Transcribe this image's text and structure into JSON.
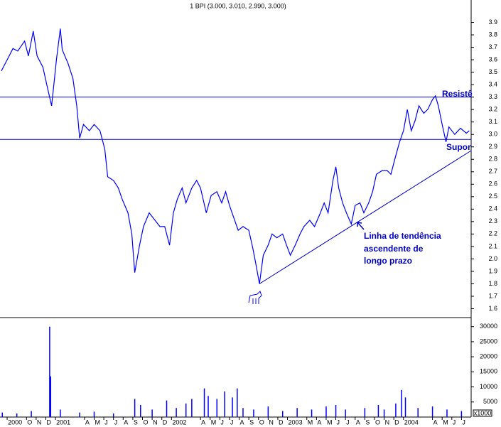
{
  "chart_data": [
    {
      "type": "line",
      "title": "1 BPI (3.000, 3.010, 2.990, 3.000)",
      "color": "#0000ff",
      "x": [
        6.4,
        7.0,
        7.6,
        8.1,
        8.8,
        9.2,
        9.7,
        10.1,
        10.7,
        11.1,
        11.6,
        11.9,
        12.1,
        12.5,
        12.7,
        13.3,
        13.8,
        14.2,
        14.5,
        14.9,
        15.5,
        16.0,
        16.6,
        17.1,
        17.4,
        18.0,
        18.5,
        18.9,
        19.5,
        19.9,
        20.2,
        20.7,
        21.1,
        21.7,
        22.3,
        22.8,
        23.3,
        23.8,
        24.2,
        24.6,
        25.1,
        25.5,
        26.1,
        26.6,
        27.0,
        27.6,
        28.1,
        28.7,
        29.2,
        29.6,
        30.0,
        30.4,
        30.9,
        31.4,
        32.0,
        32.4,
        32.7,
        33.1,
        33.5,
        34.0,
        34.4,
        34.9,
        35.5,
        35.9,
        36.3,
        36.8,
        37.3,
        37.7,
        38.3,
        38.8,
        39.4,
        39.8,
        40.2,
        40.7,
        41.0,
        41.3,
        41.7,
        42.1,
        42.6,
        43.0,
        43.5,
        43.9,
        44.4,
        44.8,
        45.2,
        45.8,
        46.3,
        46.7,
        47.1,
        47.6,
        48.0,
        48.4,
        48.8,
        49.2,
        49.6,
        50.1,
        50.5,
        51.0,
        51.3,
        51.6,
        52.0,
        52.4,
        52.7,
        53.3,
        53.9,
        54.5,
        54.8
      ],
      "values": [
        3.51,
        3.6,
        3.69,
        3.67,
        3.75,
        3.63,
        3.83,
        3.63,
        3.54,
        3.4,
        3.23,
        3.45,
        3.6,
        3.85,
        3.68,
        3.57,
        3.45,
        3.23,
        2.97,
        3.08,
        3.03,
        3.08,
        3.03,
        2.88,
        2.66,
        2.63,
        2.57,
        2.48,
        2.37,
        2.2,
        1.89,
        2.11,
        2.26,
        2.37,
        2.31,
        2.26,
        2.26,
        2.11,
        2.37,
        2.48,
        2.57,
        2.45,
        2.57,
        2.63,
        2.57,
        2.37,
        2.51,
        2.54,
        2.45,
        2.54,
        2.43,
        2.34,
        2.23,
        2.26,
        2.23,
        2.09,
        1.97,
        1.8,
        2.03,
        2.11,
        2.2,
        2.17,
        2.2,
        2.11,
        2.03,
        2.11,
        2.2,
        2.26,
        2.31,
        2.26,
        2.37,
        2.45,
        2.37,
        2.63,
        2.74,
        2.57,
        2.45,
        2.37,
        2.28,
        2.43,
        2.45,
        2.37,
        2.45,
        2.54,
        2.68,
        2.71,
        2.71,
        2.68,
        2.8,
        2.94,
        3.03,
        3.2,
        3.03,
        3.11,
        3.23,
        3.17,
        3.2,
        3.28,
        3.31,
        3.23,
        3.08,
        2.94,
        3.06,
        3.0,
        3.05,
        3.01,
        3.03
      ],
      "xlim": [
        6.26,
        55.0
      ],
      "ylim": [
        1.54,
        4.08
      ],
      "yticks": [
        1.6,
        1.7,
        1.8,
        1.9,
        {
          "value": 2,
          "label": "2.0"
        },
        2.1,
        2.2,
        2.3,
        2.4,
        2.5,
        2.6,
        2.7,
        2.8,
        2.9,
        {
          "value": 3,
          "label": "3.0"
        },
        3.1,
        3.2,
        3.3,
        3.4,
        3.5,
        3.6,
        3.7,
        3.8,
        3.9
      ],
      "hlines": [
        3.3,
        2.96
      ],
      "trendline": {
        "x": [
          33.1,
          55.0
        ],
        "y": [
          1.8,
          2.87
        ]
      },
      "annotations": [
        "Resistê",
        "Supor",
        "Linha de tendência",
        "ascendente de",
        "longo prazo"
      ]
    },
    {
      "type": "bar",
      "color": "#0000ff",
      "x": [
        6.5,
        8,
        9.5,
        11.4,
        11.5,
        12.5,
        14.5,
        16,
        18,
        20.2,
        20.8,
        22,
        23.5,
        24.5,
        25.5,
        26.1,
        27.4,
        27.8,
        28.7,
        29.5,
        30.3,
        30.8,
        31.4,
        32.5,
        34,
        35.5,
        37,
        38.5,
        40,
        41,
        42,
        44,
        45.4,
        46,
        47.2,
        47.8,
        48.2,
        49.5,
        51,
        52.5,
        54
      ],
      "values": [
        1500,
        1200,
        2000,
        30000,
        13500,
        2500,
        1500,
        1800,
        1200,
        6000,
        4000,
        2500,
        5500,
        3000,
        4500,
        6000,
        9500,
        7000,
        6000,
        8500,
        6500,
        9500,
        3000,
        2500,
        3500,
        2000,
        3000,
        2500,
        3500,
        4000,
        2500,
        3000,
        4000,
        2500,
        4500,
        9000,
        6500,
        3000,
        3500,
        2500,
        2000
      ],
      "xlim": [
        6.26,
        55.0
      ],
      "ylim": [
        0,
        33000
      ],
      "yticks": [
        5000,
        10000,
        15000,
        20000,
        25000,
        30000
      ],
      "unit_label": "x1000",
      "xticks": [
        {
          "value": 7,
          "label": "2000"
        },
        {
          "value": 9,
          "label": "O"
        },
        {
          "value": 10,
          "label": "N"
        },
        {
          "value": 11,
          "label": "D"
        },
        {
          "value": 12,
          "label": "2001"
        },
        {
          "value": 15,
          "label": "A"
        },
        {
          "value": 16,
          "label": "M"
        },
        {
          "value": 17,
          "label": "J"
        },
        {
          "value": 18,
          "label": "J"
        },
        {
          "value": 19,
          "label": "A"
        },
        {
          "value": 20,
          "label": "S"
        },
        {
          "value": 21,
          "label": "O"
        },
        {
          "value": 22,
          "label": "N"
        },
        {
          "value": 23,
          "label": "D"
        },
        {
          "value": 24,
          "label": "2002"
        },
        {
          "value": 27,
          "label": "A"
        },
        {
          "value": 28,
          "label": "M"
        },
        {
          "value": 29,
          "label": "J"
        },
        {
          "value": 30,
          "label": "J"
        },
        {
          "value": 31,
          "label": "A"
        },
        {
          "value": 32,
          "label": "S"
        },
        {
          "value": 33,
          "label": "O"
        },
        {
          "value": 34,
          "label": "N"
        },
        {
          "value": 35,
          "label": "D"
        },
        {
          "value": 36,
          "label": "2003"
        },
        {
          "value": 38,
          "label": "M"
        },
        {
          "value": 39,
          "label": "A"
        },
        {
          "value": 40,
          "label": "M"
        },
        {
          "value": 41,
          "label": "J"
        },
        {
          "value": 42,
          "label": "J"
        },
        {
          "value": 43,
          "label": "A"
        },
        {
          "value": 44,
          "label": "S"
        },
        {
          "value": 45,
          "label": "O"
        },
        {
          "value": 46,
          "label": "N"
        },
        {
          "value": 47,
          "label": "D"
        },
        {
          "value": 48,
          "label": "2004"
        },
        {
          "value": 51,
          "label": "A"
        },
        {
          "value": 52,
          "label": "M"
        },
        {
          "value": 53,
          "label": "J"
        },
        {
          "value": 54,
          "label": "J"
        }
      ]
    }
  ]
}
